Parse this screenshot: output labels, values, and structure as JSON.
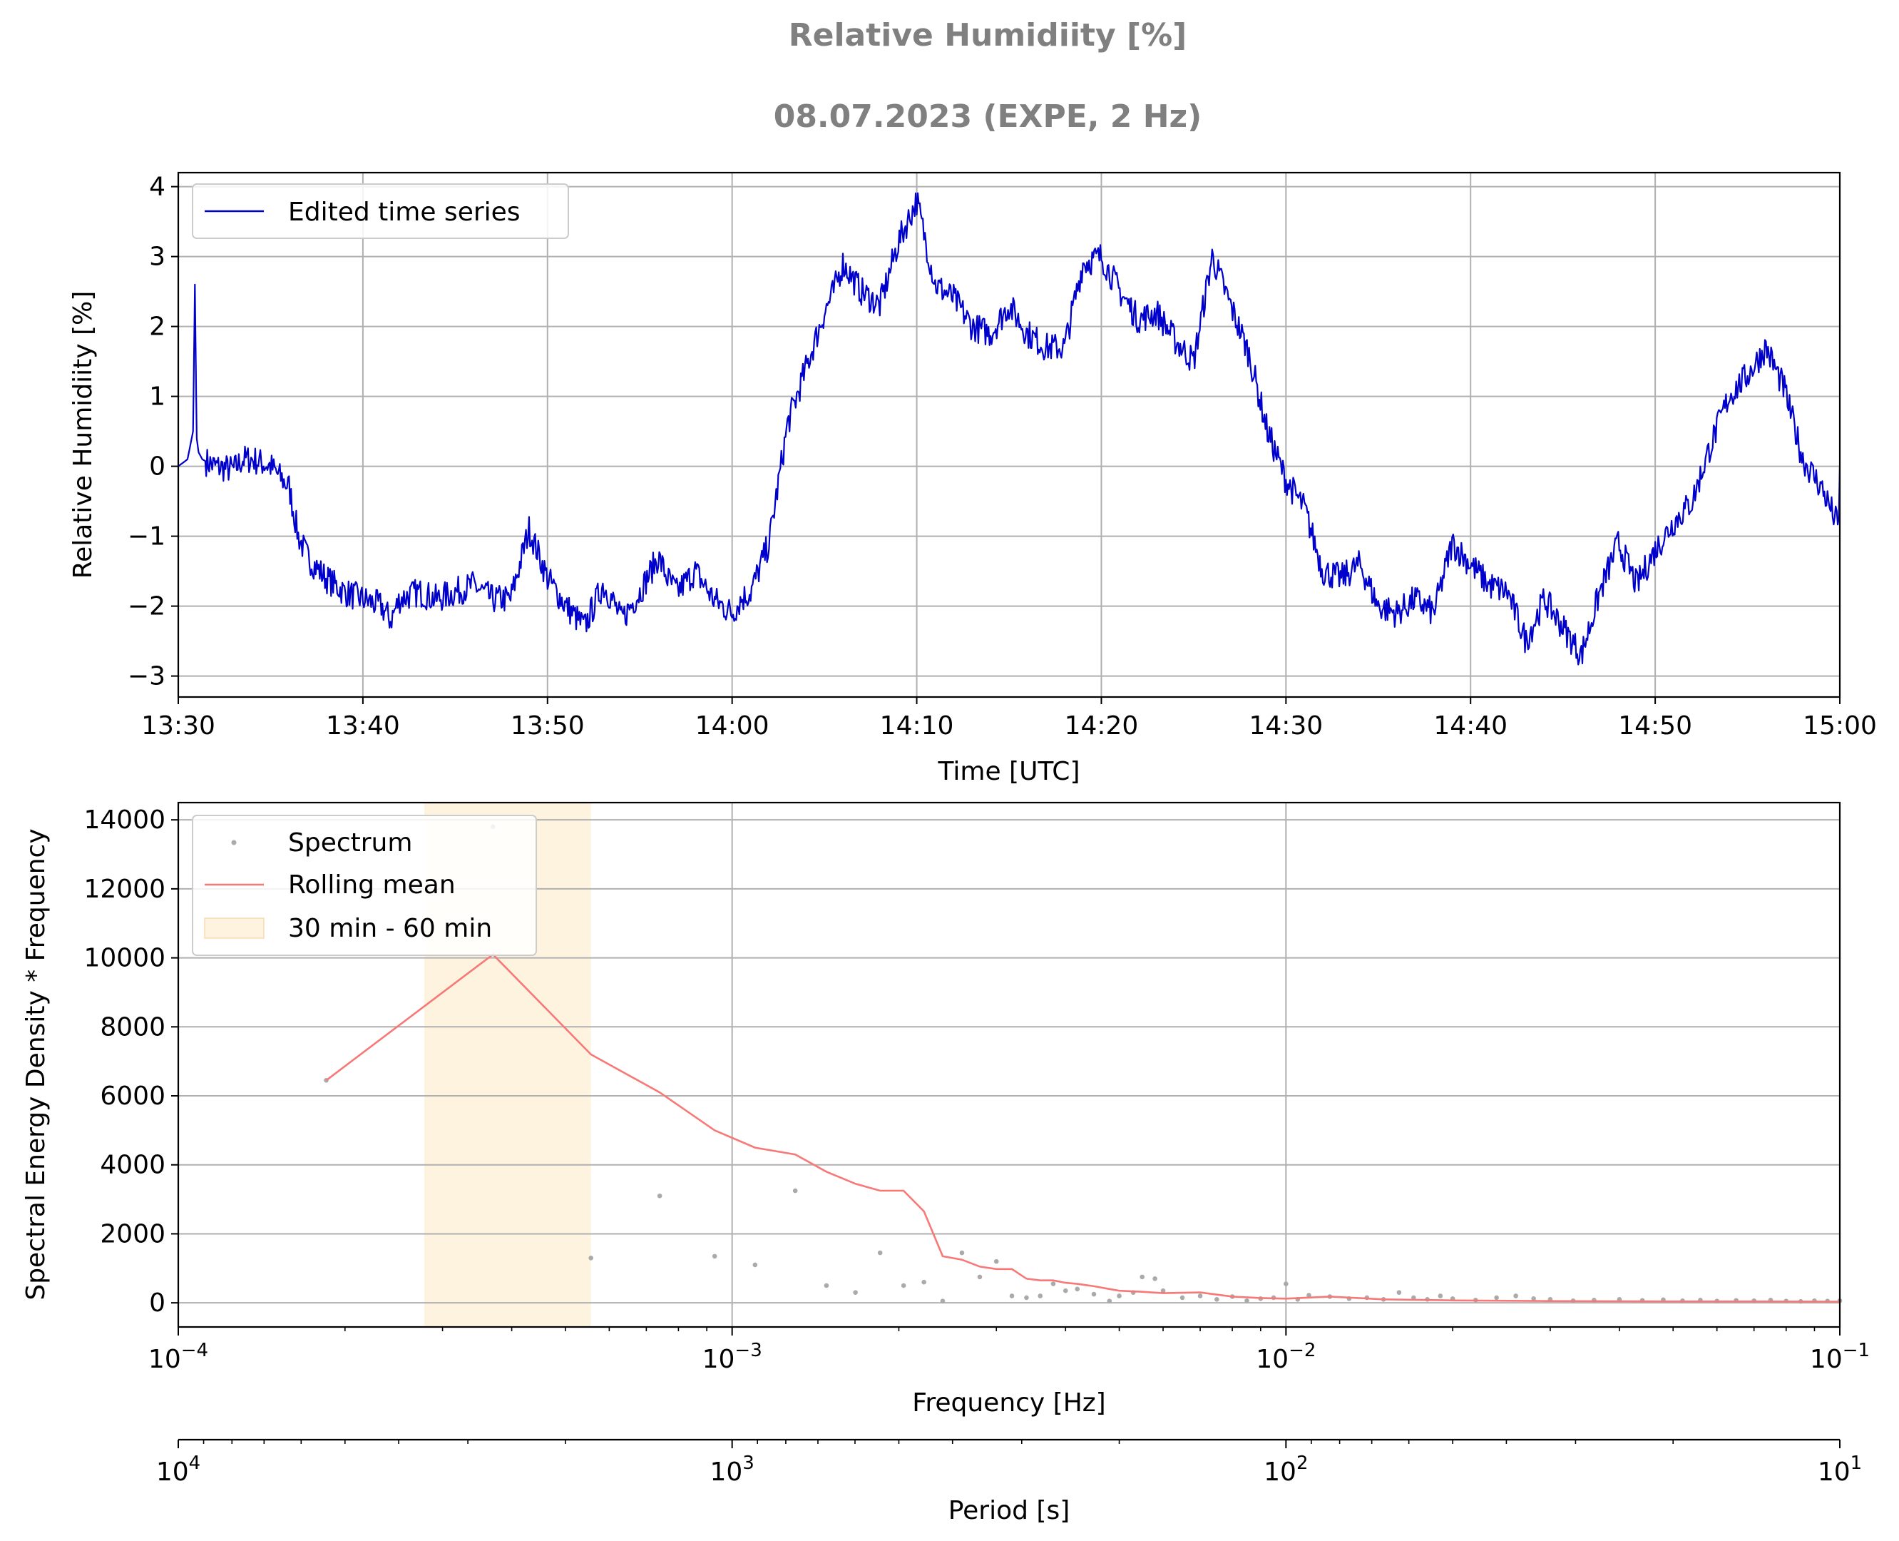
{
  "figure": {
    "title": "Relative Humidiity [%]",
    "subtitle": "08.07.2023 (EXPE, 2 Hz)"
  },
  "chart_data": [
    {
      "type": "line",
      "xlabel": "Time [UTC]",
      "ylabel": "Relative Humidiity [%]",
      "xlim": [
        "13:30",
        "15:00"
      ],
      "ylim": [
        -3.3,
        4.2
      ],
      "x_ticks": [
        "13:30",
        "13:40",
        "13:50",
        "14:00",
        "14:10",
        "14:20",
        "14:30",
        "14:40",
        "14:50",
        "15:00"
      ],
      "y_ticks": [
        -3,
        -2,
        -1,
        0,
        1,
        2,
        3,
        4
      ],
      "grid": true,
      "legend_position": "top-left",
      "series": [
        {
          "name": "Edited time series",
          "color": "#0000cd",
          "x_minutes_after_1330": [
            0,
            0.5,
            0.8,
            0.9,
            1.0,
            1.1,
            1.3,
            2,
            3,
            3.5,
            4,
            5,
            6,
            6.5,
            7,
            8,
            9,
            10,
            11,
            11.5,
            12,
            13,
            14,
            15,
            16,
            16.5,
            17,
            18,
            19,
            20,
            21,
            22,
            23,
            23.5,
            24,
            25,
            26,
            26.5,
            27,
            28,
            29,
            30,
            30.5,
            31,
            32,
            33,
            34,
            35,
            35.5,
            36,
            37,
            38,
            39,
            40,
            41,
            42,
            43,
            44,
            45,
            46,
            47,
            48,
            49,
            50,
            51,
            52,
            53,
            54,
            55,
            56,
            57,
            58,
            59,
            60,
            61,
            62,
            63,
            64,
            65,
            66,
            67,
            68,
            69,
            70,
            71,
            72,
            73,
            74,
            75,
            76,
            77,
            78,
            79,
            80,
            81,
            82,
            83,
            84,
            85,
            86,
            87,
            88,
            89,
            90
          ],
          "y": [
            0,
            0.1,
            0.5,
            2.6,
            0.4,
            0.2,
            0.1,
            0,
            -0.05,
            0.1,
            0.1,
            0,
            -0.3,
            -1.0,
            -1.3,
            -1.6,
            -1.8,
            -1.9,
            -2.0,
            -2.2,
            -1.9,
            -1.8,
            -1.9,
            -1.8,
            -1.7,
            -1.8,
            -1.9,
            -1.9,
            -0.9,
            -1.6,
            -2.0,
            -2.3,
            -1.7,
            -1.9,
            -2.2,
            -1.8,
            -1.3,
            -1.6,
            -1.8,
            -1.5,
            -1.9,
            -2.1,
            -1.9,
            -1.8,
            -1.1,
            0.6,
            1.4,
            2.2,
            2.5,
            2.9,
            2.5,
            2.3,
            3.2,
            3.8,
            2.6,
            2.4,
            2.0,
            1.9,
            2.3,
            1.9,
            1.7,
            1.7,
            2.9,
            3.0,
            2.5,
            2.1,
            2.2,
            1.8,
            1.5,
            3.0,
            2.3,
            1.6,
            0.5,
            -0.2,
            -0.6,
            -1.5,
            -1.6,
            -1.4,
            -2.0,
            -2.1,
            -1.9,
            -2.1,
            -1.1,
            -1.4,
            -1.7,
            -1.8,
            -2.5,
            -1.9,
            -2.3,
            -2.7,
            -1.8,
            -1.1,
            -1.7,
            -1.2,
            -0.8,
            -0.5,
            0.3,
            1.0,
            1.3,
            1.7,
            1.1,
            0.1,
            -0.3,
            -0.9,
            -0.6,
            -0.2,
            0.0
          ]
        }
      ]
    },
    {
      "type": "scatter",
      "xlabel": "Frequency [Hz]",
      "ylabel": "Spectral Energy Density * Frequency",
      "x_scale": "log",
      "xlim": [
        0.0001,
        0.1
      ],
      "ylim": [
        -700,
        14500
      ],
      "x_ticks": [
        "10^-4",
        "10^-3",
        "10^-2",
        "10^-1"
      ],
      "y_ticks": [
        0,
        2000,
        4000,
        6000,
        8000,
        10000,
        12000,
        14000
      ],
      "grid": true,
      "legend_position": "top-left",
      "secondary_xaxis": {
        "label": "Period [s]",
        "ticks": [
          "10^4",
          "10^3",
          "10^2",
          "10^1"
        ]
      },
      "band": {
        "name": "30 min - 60 min",
        "color": "#fde9c4",
        "x_range_hz": [
          0.000278,
          0.000556
        ]
      },
      "series": [
        {
          "name": "Spectrum",
          "type": "scatter",
          "color": "#aaaaaa",
          "x": [
            0.000185,
            0.00037,
            0.000556,
            0.00074,
            0.00093,
            0.0011,
            0.0013,
            0.00148,
            0.00167,
            0.00185,
            0.00204,
            0.00222,
            0.0024,
            0.0026,
            0.0028,
            0.003,
            0.0032,
            0.0034,
            0.0036,
            0.0038,
            0.004,
            0.0042,
            0.0045,
            0.0048,
            0.005,
            0.0053,
            0.0055,
            0.0058,
            0.006,
            0.0065,
            0.007,
            0.0075,
            0.008,
            0.0085,
            0.009,
            0.0095,
            0.01,
            0.0105,
            0.011,
            0.012,
            0.013,
            0.014,
            0.015,
            0.016,
            0.017,
            0.018,
            0.019,
            0.02,
            0.022,
            0.024,
            0.026,
            0.028,
            0.03,
            0.033,
            0.036,
            0.04,
            0.044,
            0.048,
            0.052,
            0.056,
            0.06,
            0.065,
            0.07,
            0.075,
            0.08,
            0.085,
            0.09,
            0.095,
            0.1
          ],
          "y": [
            6450,
            13800,
            1300,
            3100,
            1350,
            1100,
            3250,
            500,
            300,
            1450,
            500,
            600,
            50,
            1450,
            750,
            1200,
            200,
            150,
            200,
            550,
            350,
            400,
            250,
            50,
            200,
            300,
            750,
            700,
            350,
            150,
            200,
            100,
            180,
            60,
            120,
            150,
            550,
            100,
            220,
            180,
            120,
            150,
            100,
            300,
            150,
            100,
            200,
            120,
            80,
            150,
            200,
            120,
            100,
            60,
            80,
            100,
            70,
            90,
            60,
            80,
            50,
            70,
            60,
            80,
            50,
            40,
            60,
            50,
            60
          ]
        },
        {
          "name": "Rolling mean",
          "type": "line",
          "color": "#f87777",
          "x": [
            0.000185,
            0.00037,
            0.000556,
            0.00074,
            0.00093,
            0.0011,
            0.0013,
            0.00148,
            0.00167,
            0.00185,
            0.00204,
            0.00222,
            0.0024,
            0.0026,
            0.0028,
            0.003,
            0.0032,
            0.0034,
            0.0036,
            0.0038,
            0.004,
            0.0042,
            0.0045,
            0.0048,
            0.005,
            0.0055,
            0.006,
            0.007,
            0.008,
            0.009,
            0.01,
            0.012,
            0.015,
            0.02,
            0.03,
            0.05,
            0.07,
            0.1
          ],
          "y": [
            6450,
            10100,
            7200,
            6100,
            5000,
            4500,
            4300,
            3800,
            3450,
            3250,
            3250,
            2650,
            1350,
            1250,
            1050,
            980,
            980,
            700,
            650,
            650,
            580,
            550,
            480,
            400,
            350,
            320,
            280,
            300,
            180,
            140,
            120,
            180,
            100,
            70,
            50,
            40,
            40,
            35
          ]
        }
      ]
    }
  ]
}
